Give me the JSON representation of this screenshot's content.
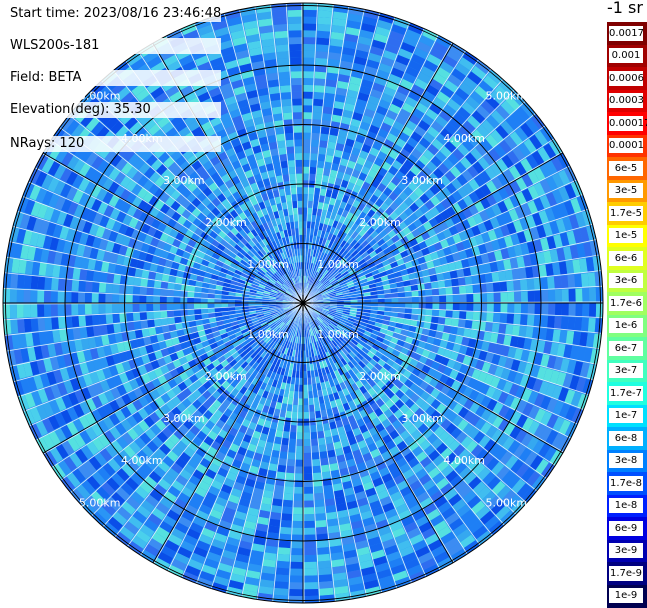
{
  "header": {
    "start_time": "Start time: 2023/08/16 23:46:48",
    "device": "WLS200s-181",
    "field": "Field: BETA",
    "elevation": "Elevation(deg): 35.30",
    "nrays": "NRays: 120"
  },
  "colorbar": {
    "unit_label": "-1 sr",
    "labels": [
      "0.0017",
      "0.001",
      "0.0006",
      "0.0003",
      "0.00017",
      "0.0001",
      "6e-5",
      "3e-5",
      "1.7e-5",
      "1e-5",
      "6e-6",
      "3e-6",
      "1.7e-6",
      "1e-6",
      "6e-7",
      "3e-7",
      "1.7e-7",
      "1e-7",
      "6e-8",
      "3e-8",
      "1.7e-8",
      "1e-8",
      "6e-9",
      "3e-9",
      "1.7e-9",
      "1e-9"
    ],
    "colors": [
      "#7f0000",
      "#a00000",
      "#c00000",
      "#e00000",
      "#ff0000",
      "#ff3300",
      "#ff6600",
      "#ff9900",
      "#ffcc00",
      "#ffff00",
      "#e0ff20",
      "#c0ff40",
      "#a0ff60",
      "#80ff80",
      "#60ffa0",
      "#40ffc0",
      "#20ffe0",
      "#00e0ff",
      "#00b0ff",
      "#0080ff",
      "#0050ff",
      "#0020ff",
      "#0000e0",
      "#0000b0",
      "#000080",
      "#000050"
    ]
  },
  "range_rings": {
    "labels": [
      "1.00km",
      "2.00km",
      "3.00km",
      "4.00km",
      "5.00km"
    ]
  }
}
